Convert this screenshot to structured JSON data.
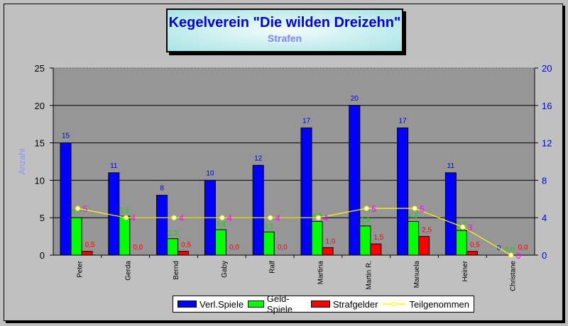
{
  "title": "Kegelverein \"Die wilden Dreizehn\"",
  "subtitle": "Strafen",
  "colors": {
    "verl": "#0000ff",
    "geld": "#00ff00",
    "straf": "#ff0000",
    "teil": "#ffff00",
    "label_verl": "#0000e0",
    "label_geld": "#00e000",
    "label_straf": "#ff0000",
    "label_teil": "#ff00ff",
    "plot_bg": "#969696"
  },
  "legend": {
    "verl": "Verl.Spiele",
    "geld": "Geld-Spiele",
    "straf": "Strafgelder",
    "teil": "Teilgenommen"
  },
  "chart_data": {
    "type": "bar",
    "title": "Kegelverein \"Die wilden Dreizehn\"",
    "subtitle": "Strafen",
    "categories": [
      "Peter",
      "Gerda",
      "Bernd",
      "Gaby",
      "Ralf",
      "Martina",
      "Martin R.",
      "Manuela",
      "Heiner",
      "Christane"
    ],
    "series": [
      {
        "name": "Verl.Spiele",
        "type": "bar",
        "axis": "left",
        "values": [
          15,
          11,
          8,
          10,
          12,
          17,
          20,
          17,
          11,
          0
        ],
        "labels": [
          "15",
          "11",
          "8",
          "10",
          "12",
          "17",
          "20",
          "17",
          "11",
          "0"
        ]
      },
      {
        "name": "Geld-Spiele",
        "type": "bar",
        "axis": "left",
        "values": [
          5.0,
          5.2,
          2.2,
          3.4,
          3.1,
          4.5,
          3.9,
          4.5,
          3.3,
          0.0
        ],
        "labels": [
          "5,0",
          "5,2",
          "2,2",
          "3,4",
          "3,1",
          "4,5",
          "3,9",
          "4,5",
          "3,3",
          "0,0"
        ]
      },
      {
        "name": "Strafgelder",
        "type": "bar",
        "axis": "left",
        "values": [
          0.5,
          0.0,
          0.5,
          0.0,
          0.0,
          1.0,
          1.5,
          2.5,
          0.5,
          0.0
        ],
        "labels": [
          "0,5",
          "0,0",
          "0,5",
          "0,0",
          "0,0",
          "1,0",
          "1,5",
          "2,5",
          "0,5",
          "0,0"
        ]
      },
      {
        "name": "Teilgenommen",
        "type": "line",
        "axis": "right",
        "values": [
          5,
          4,
          4,
          4,
          4,
          4,
          5,
          5,
          3,
          0
        ],
        "labels": [
          "5",
          "4",
          "4",
          "4",
          "4",
          "4",
          "5",
          "5",
          "3",
          "0"
        ]
      }
    ],
    "xlabel": "",
    "ylabel": "Anzahl",
    "ylim": [
      0,
      25
    ],
    "yticks": [
      0,
      5,
      10,
      15,
      20,
      25
    ],
    "y2lim": [
      0,
      20
    ],
    "y2ticks": [
      0,
      4,
      8,
      12,
      16,
      20
    ],
    "grid": true,
    "legend_position": "bottom"
  }
}
